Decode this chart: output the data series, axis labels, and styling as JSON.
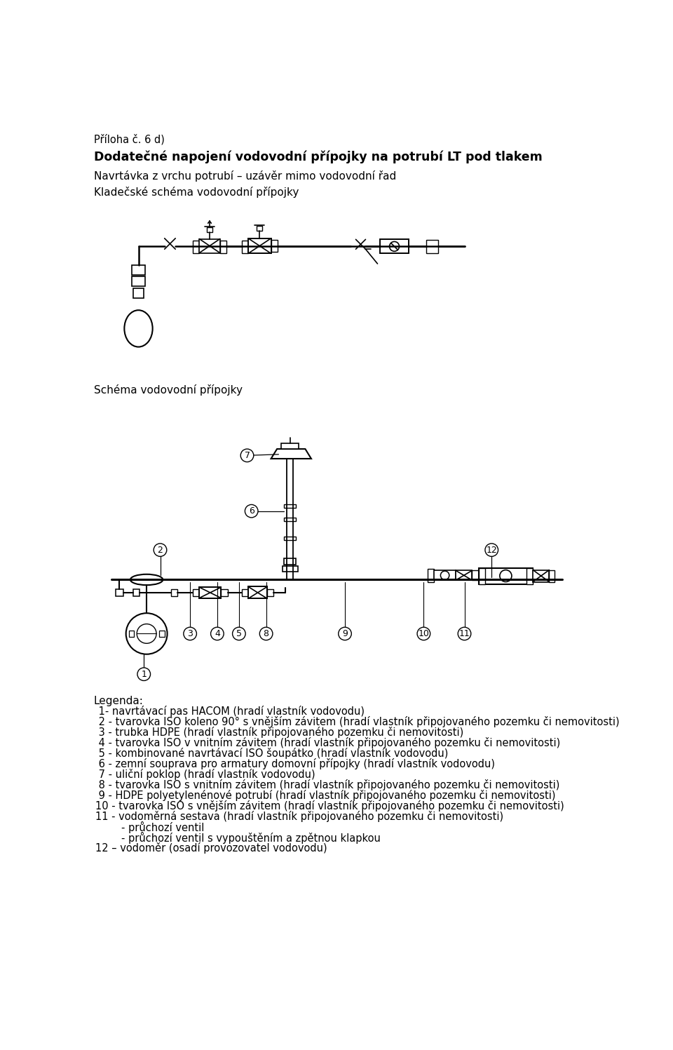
{
  "background_color": "#ffffff",
  "title_small": "Příloha č. 6 d)",
  "title_bold": "Dodatečné napojení vodovodní přípojky na potrubí LT pod tlakem",
  "subtitle1": "Navrtávka z vrchu potrubí – uzávěr mimo vodovodní řad",
  "subtitle2": "Kladečské schéma vodovodní přípojky",
  "schema_label": "Schéma vodovodní přípojky",
  "legend_title": "Legenda:",
  "legend_lines": [
    " 1- navrtávací pas HACOM (hradí vlastník vodovodu)",
    " 2 - tvarovka ISO koleno 90° s vnějším závitem (hradí vlastník připojovaného pozemku či nemovitosti)",
    " 3 - trubka HDPE (hradí vlastník připojovaného pozemku či nemovitosti)",
    " 4 - tvarovka ISO v vnitním závitem (hradí vlastník připojovaného pozemku či nemovitosti)",
    " 5 - kombinované navrtávací ISO šoupátko (hradí vlastník vodovodu)",
    " 6 - zemní souprava pro armatury domovní přípojky (hradí vlastník vodovodu)",
    " 7 - uliční poklop (hradí vlastník vodovodu)",
    " 8 - tvarovka ISO s vnitním závitem (hradí vlastník připojovaného pozemku či nemovitosti)",
    " 9 - HDPE polyetylenénové potrubí (hradí vlastník připojovaného pozemku či nemovitosti)",
    "10 - tvarovka ISO s vnějším závitem (hradí vlastník připojovaného pozemku či nemovitosti)",
    "11 - vodoměrná sestava (hradí vlastník připojovaného pozemku či nemovitosti)",
    "        - průchozí ventil",
    "        - průchozí ventil s vypouštěním a zpětnou klapkou",
    "12 – vodoměr (osadí provozovatel vodovodu)"
  ]
}
